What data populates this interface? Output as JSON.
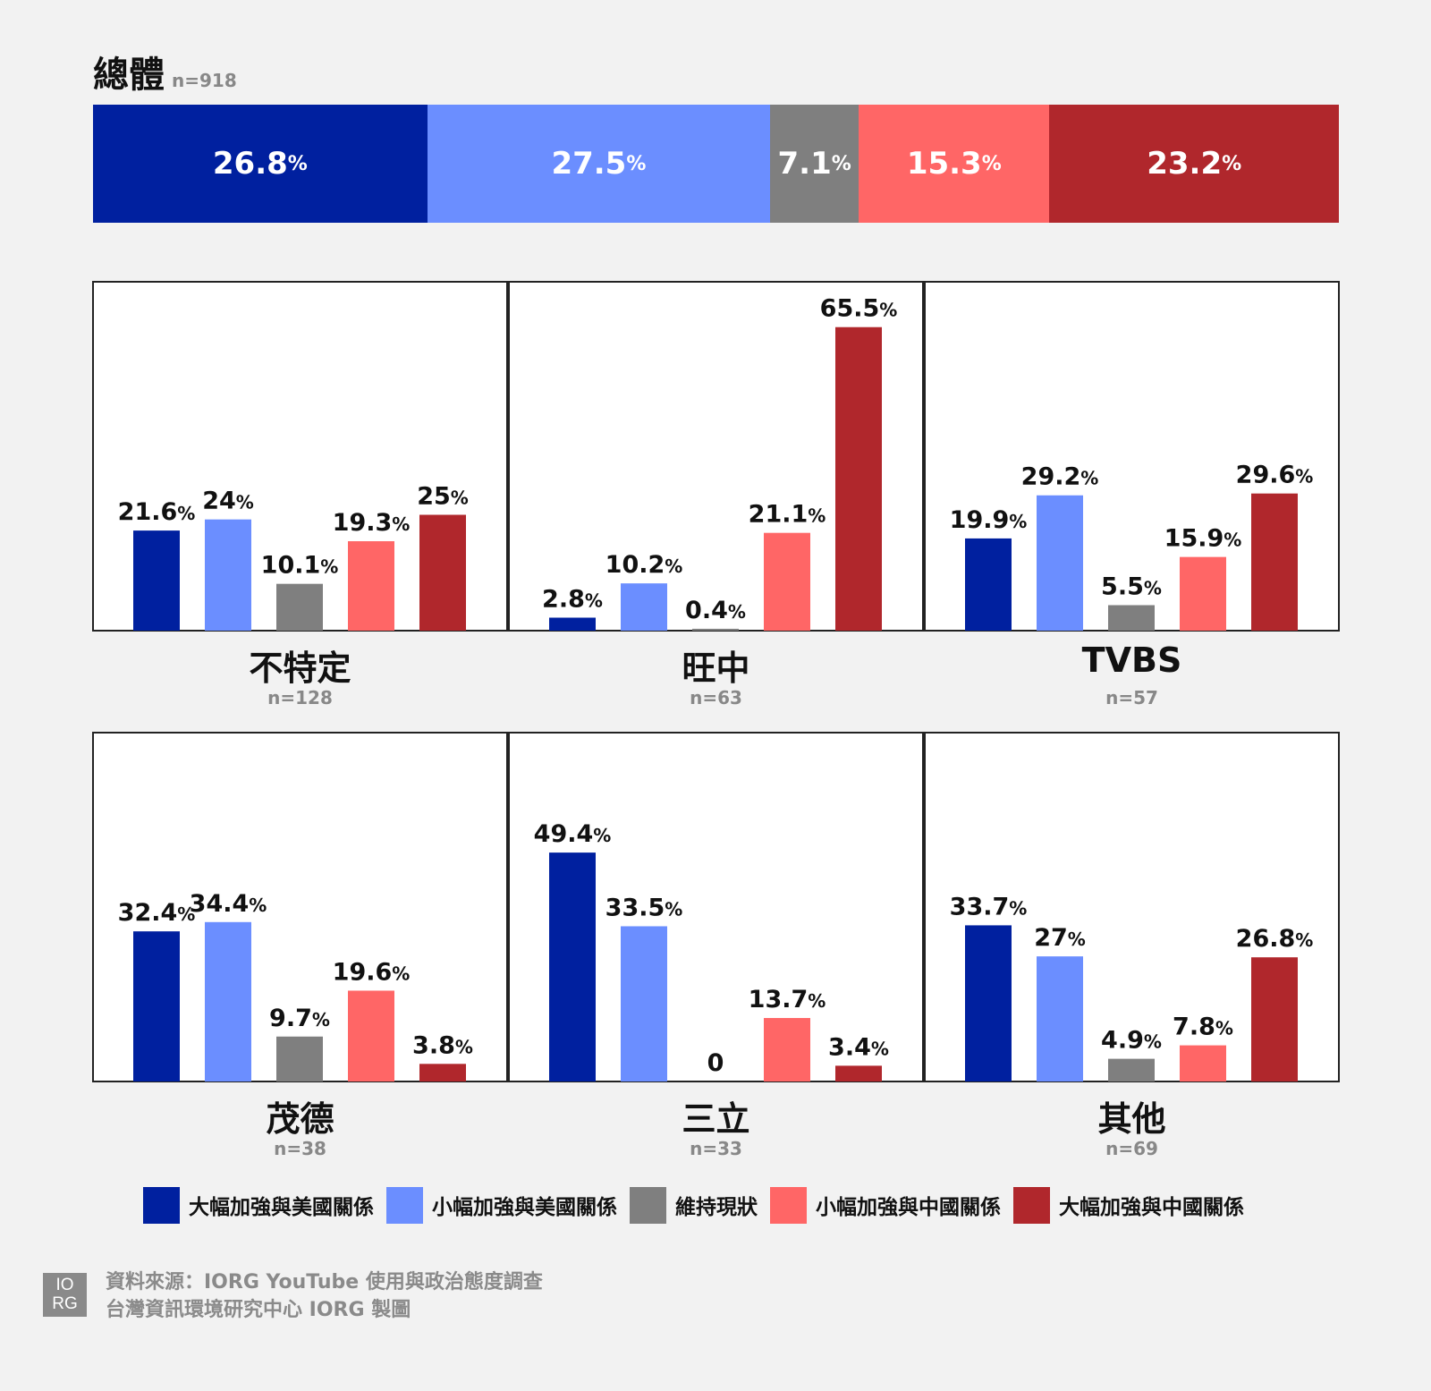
{
  "overall": {
    "title": "總體",
    "n": "n=918",
    "segments": [
      {
        "value": 26.8,
        "label": "26.8",
        "color": "#00209f"
      },
      {
        "value": 27.5,
        "label": "27.5",
        "color": "#6b8eff"
      },
      {
        "value": 7.1,
        "label": "7.1",
        "color": "#7f7f7f"
      },
      {
        "value": 15.3,
        "label": "15.3",
        "color": "#ff6666"
      },
      {
        "value": 23.2,
        "label": "23.2",
        "color": "#b0272c"
      }
    ]
  },
  "chart_data": {
    "type": "bar",
    "colors": [
      "#00209f",
      "#6b8eff",
      "#7f7f7f",
      "#ff6666",
      "#b0272c"
    ],
    "panels": [
      {
        "category": "不特定",
        "n": "n=128",
        "values": [
          21.6,
          24,
          10.1,
          19.3,
          25
        ]
      },
      {
        "category": "旺中",
        "n": "n=63",
        "values": [
          2.8,
          10.2,
          0.4,
          21.1,
          65.5
        ]
      },
      {
        "category": "TVBS",
        "n": "n=57",
        "values": [
          19.9,
          29.2,
          5.5,
          15.9,
          29.6
        ]
      },
      {
        "category": "茂德",
        "n": "n=38",
        "values": [
          32.4,
          34.4,
          9.7,
          19.6,
          3.8
        ]
      },
      {
        "category": "三立",
        "n": "n=33",
        "values": [
          49.4,
          33.5,
          0,
          13.7,
          3.4
        ]
      },
      {
        "category": "其他",
        "n": "n=69",
        "values": [
          33.7,
          27,
          4.9,
          7.8,
          26.8
        ]
      }
    ],
    "legend": [
      "大幅加強與美國關係",
      "小幅加強與美國關係",
      "維持現狀",
      "小幅加強與中國關係",
      "大幅加強與中國關係"
    ]
  },
  "footer": {
    "logo_line1": "IO",
    "logo_line2": "RG",
    "source_line1": "資料來源：IORG YouTube 使用與政治態度調查",
    "source_line2": "台灣資訊環境研究中心 IORG 製圖"
  }
}
